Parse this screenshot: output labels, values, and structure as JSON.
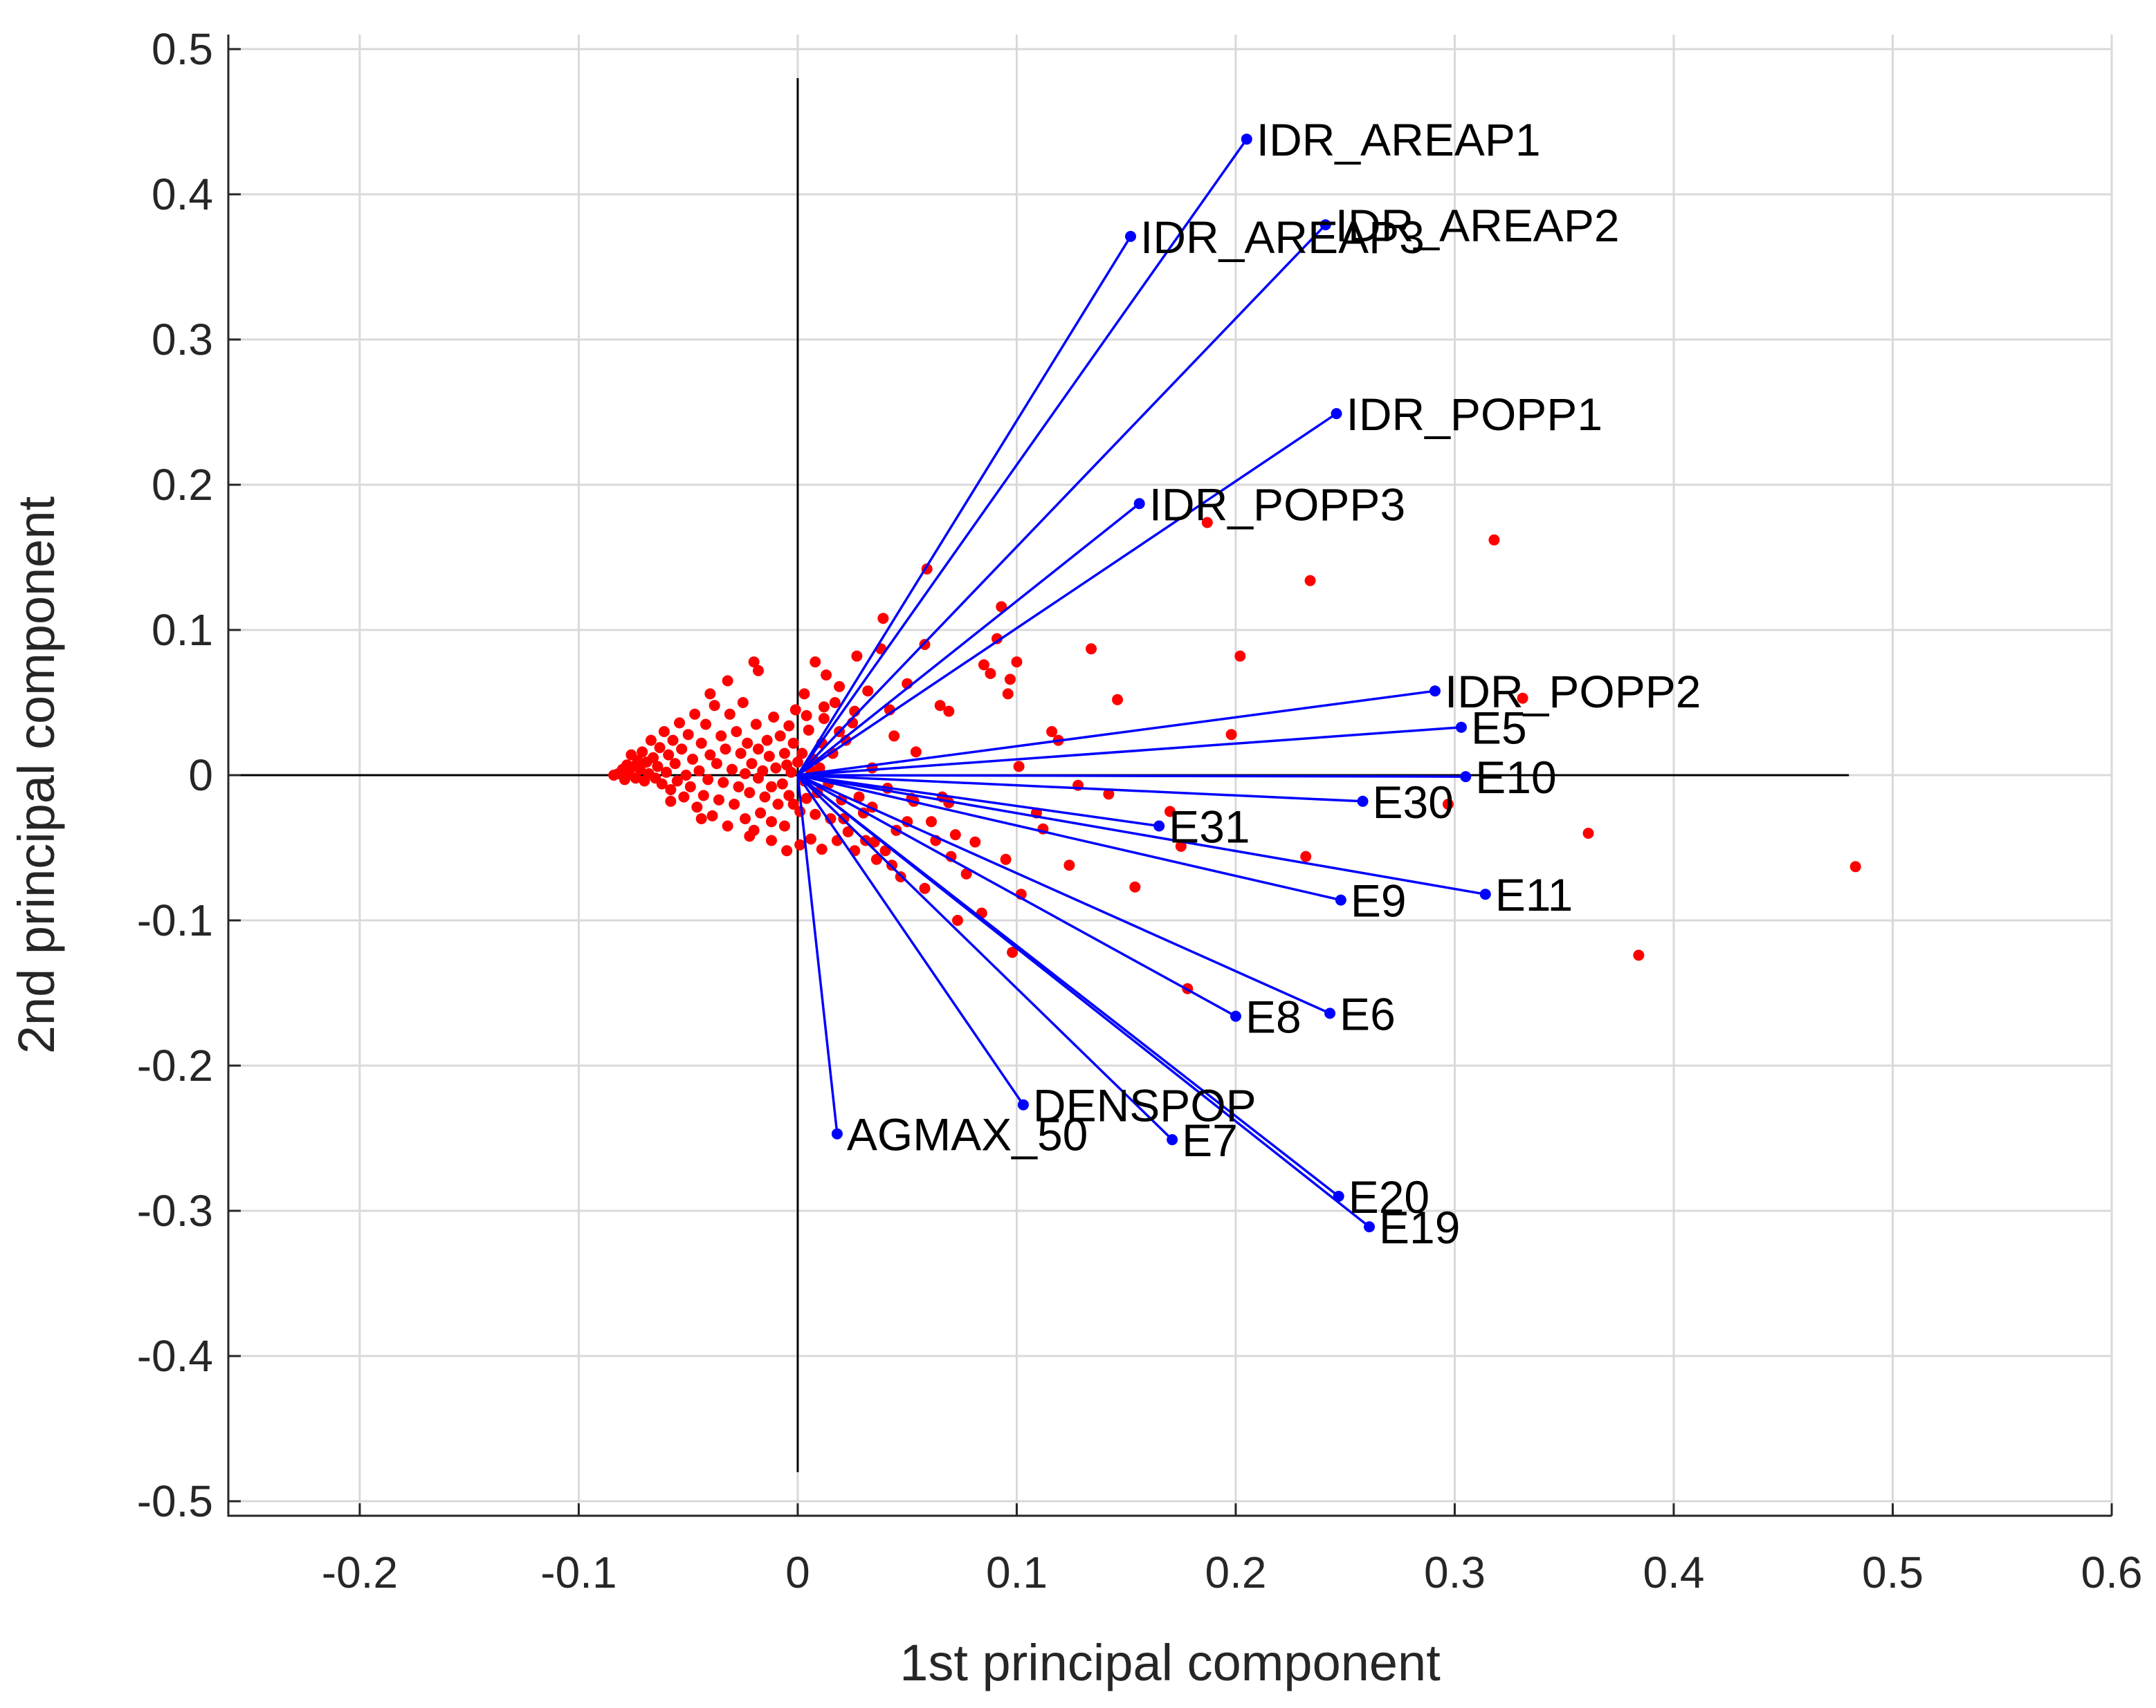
{
  "chart_data": {
    "type": "biplot",
    "xlabel": "1st principal component",
    "ylabel": "2nd principal component",
    "xlim": [
      -0.26,
      0.6
    ],
    "ylim": [
      -0.51,
      0.51
    ],
    "xticks": [
      -0.2,
      -0.1,
      0,
      0.1,
      0.2,
      0.3,
      0.4,
      0.5,
      0.6
    ],
    "xtick_labels": [
      "-0.2",
      "-0.1",
      "0",
      "0.1",
      "0.2",
      "0.3",
      "0.4",
      "0.5",
      "0.6"
    ],
    "yticks": [
      -0.5,
      -0.4,
      -0.3,
      -0.2,
      -0.1,
      0,
      0.1,
      0.2,
      0.3,
      0.4,
      0.5
    ],
    "ytick_labels": [
      "-0.5",
      "-0.4",
      "-0.3",
      "-0.2",
      "-0.1",
      "0",
      "0.1",
      "0.2",
      "0.3",
      "0.4",
      "0.5"
    ],
    "grid": true,
    "reference_lines": {
      "x_range": [
        -0.26,
        0.48
      ],
      "y_range": [
        -0.48,
        0.48
      ]
    },
    "colors": {
      "vectors": "#0000ff",
      "scores": "#ff0000",
      "axes": "#262626",
      "grid": "#d9d9d9"
    },
    "vectors": [
      {
        "name": "IDR_AREAP1",
        "x": 0.205,
        "y": 0.438
      },
      {
        "name": "IDR_AREAP3",
        "x": 0.152,
        "y": 0.371
      },
      {
        "name": "IDR_AREAP2",
        "x": 0.241,
        "y": 0.379
      },
      {
        "name": "IDR_POPP1",
        "x": 0.246,
        "y": 0.249
      },
      {
        "name": "IDR_POPP3",
        "x": 0.156,
        "y": 0.187
      },
      {
        "name": "IDR_POPP2",
        "x": 0.291,
        "y": 0.058
      },
      {
        "name": "E5",
        "x": 0.303,
        "y": 0.033
      },
      {
        "name": "E10",
        "x": 0.305,
        "y": -0.001
      },
      {
        "name": "E30",
        "x": 0.258,
        "y": -0.018
      },
      {
        "name": "E31",
        "x": 0.165,
        "y": -0.035
      },
      {
        "name": "E11",
        "x": 0.314,
        "y": -0.082
      },
      {
        "name": "E9",
        "x": 0.248,
        "y": -0.086
      },
      {
        "name": "E6",
        "x": 0.243,
        "y": -0.164
      },
      {
        "name": "E8",
        "x": 0.2,
        "y": -0.166
      },
      {
        "name": "DENSPOP",
        "x": 0.103,
        "y": -0.227
      },
      {
        "name": "E7",
        "x": 0.171,
        "y": -0.251
      },
      {
        "name": "AGMAX_50",
        "x": 0.018,
        "y": -0.247
      },
      {
        "name": "E20",
        "x": 0.247,
        "y": -0.29
      },
      {
        "name": "E19",
        "x": 0.261,
        "y": -0.311
      }
    ],
    "scores": [
      [
        0.483,
        -0.063
      ],
      [
        0.384,
        -0.124
      ],
      [
        0.361,
        -0.04
      ],
      [
        0.331,
        0.053
      ],
      [
        0.318,
        0.162
      ],
      [
        0.297,
        -0.02
      ],
      [
        0.234,
        0.134
      ],
      [
        0.232,
        -0.056
      ],
      [
        0.202,
        0.082
      ],
      [
        0.198,
        0.028
      ],
      [
        0.187,
        0.174
      ],
      [
        0.178,
        -0.147
      ],
      [
        0.175,
        -0.049
      ],
      [
        0.17,
        -0.025
      ],
      [
        0.154,
        -0.077
      ],
      [
        0.142,
        -0.013
      ],
      [
        0.134,
        0.087
      ],
      [
        0.124,
        -0.062
      ],
      [
        0.119,
        0.024
      ],
      [
        0.112,
        -0.037
      ],
      [
        0.102,
        -0.082
      ],
      [
        0.1,
        0.078
      ],
      [
        0.098,
        -0.122
      ],
      [
        0.097,
        0.066
      ],
      [
        0.096,
        0.056
      ],
      [
        0.095,
        -0.058
      ],
      [
        0.093,
        0.116
      ],
      [
        0.091,
        0.094
      ],
      [
        0.088,
        0.07
      ],
      [
        0.085,
        0.076
      ],
      [
        0.084,
        -0.095
      ],
      [
        0.077,
        -0.068
      ],
      [
        0.073,
        -0.1
      ],
      [
        0.072,
        -0.041
      ],
      [
        0.07,
        -0.056
      ],
      [
        0.069,
        -0.019
      ],
      [
        0.069,
        0.044
      ],
      [
        0.066,
        -0.015
      ],
      [
        0.065,
        0.048
      ],
      [
        0.063,
        -0.045
      ],
      [
        0.059,
        0.142
      ],
      [
        0.058,
        0.09
      ],
      [
        0.058,
        -0.078
      ],
      [
        0.054,
        0.016
      ],
      [
        0.052,
        -0.016
      ],
      [
        0.05,
        0.063
      ],
      [
        0.05,
        -0.032
      ],
      [
        0.047,
        -0.07
      ],
      [
        0.045,
        -0.038
      ],
      [
        0.044,
        0.027
      ],
      [
        0.042,
        0.045
      ],
      [
        0.041,
        -0.009
      ],
      [
        0.04,
        -0.052
      ],
      [
        0.039,
        0.108
      ],
      [
        0.038,
        0.087
      ],
      [
        0.036,
        -0.058
      ],
      [
        0.035,
        -0.046
      ],
      [
        0.034,
        0.005
      ],
      [
        0.032,
        0.058
      ],
      [
        0.031,
        -0.045
      ],
      [
        0.03,
        -0.026
      ],
      [
        0.028,
        -0.015
      ],
      [
        0.027,
        0.082
      ],
      [
        0.026,
        -0.052
      ],
      [
        0.025,
        0.036
      ],
      [
        0.023,
        -0.039
      ],
      [
        0.022,
        0.024
      ],
      [
        0.021,
        -0.03
      ],
      [
        0.02,
        -0.017
      ],
      [
        0.019,
        0.03
      ],
      [
        0.018,
        -0.045
      ],
      [
        0.017,
        0.05
      ],
      [
        0.016,
        0.015
      ],
      [
        0.015,
        -0.03
      ],
      [
        0.014,
        -0.006
      ],
      [
        0.013,
        0.069
      ],
      [
        0.012,
        0.039
      ],
      [
        0.011,
        -0.051
      ],
      [
        0.011,
        0.022
      ],
      [
        0.01,
        0.005
      ],
      [
        0.009,
        -0.012
      ],
      [
        0.008,
        0.078
      ],
      [
        0.008,
        -0.027
      ],
      [
        0.007,
        0.011
      ],
      [
        0.006,
        -0.044
      ],
      [
        0.006,
        0.003
      ],
      [
        0.005,
        0.031
      ],
      [
        0.004,
        -0.016
      ],
      [
        0.003,
        0.056
      ],
      [
        0.003,
        -0.004
      ],
      [
        0.002,
        0.015
      ],
      [
        0.001,
        -0.025
      ],
      [
        0.0,
        0.009
      ],
      [
        -0.001,
        0.045
      ],
      [
        -0.002,
        -0.02
      ],
      [
        -0.002,
        0.022
      ],
      [
        -0.003,
        0.002
      ],
      [
        -0.004,
        0.034
      ],
      [
        -0.004,
        -0.014
      ],
      [
        -0.005,
        0.007
      ],
      [
        -0.006,
        -0.035
      ],
      [
        -0.006,
        0.015
      ],
      [
        -0.007,
        -0.006
      ],
      [
        -0.008,
        0.027
      ],
      [
        -0.009,
        -0.02
      ],
      [
        -0.01,
        0.005
      ],
      [
        -0.011,
        0.04
      ],
      [
        -0.012,
        -0.008
      ],
      [
        -0.012,
        -0.032
      ],
      [
        -0.013,
        0.013
      ],
      [
        -0.014,
        0.024
      ],
      [
        -0.015,
        -0.015
      ],
      [
        -0.016,
        0.003
      ],
      [
        -0.017,
        -0.026
      ],
      [
        -0.018,
        0.018
      ],
      [
        -0.018,
        -0.002
      ],
      [
        -0.019,
        0.035
      ],
      [
        -0.02,
        -0.038
      ],
      [
        -0.021,
        0.008
      ],
      [
        -0.022,
        -0.012
      ],
      [
        -0.023,
        0.022
      ],
      [
        -0.024,
        0.001
      ],
      [
        -0.024,
        -0.03
      ],
      [
        -0.025,
        0.05
      ],
      [
        -0.026,
        0.015
      ],
      [
        -0.027,
        -0.008
      ],
      [
        -0.028,
        0.03
      ],
      [
        -0.029,
        -0.02
      ],
      [
        -0.03,
        0.004
      ],
      [
        -0.031,
        0.042
      ],
      [
        -0.032,
        -0.035
      ],
      [
        -0.033,
        0.018
      ],
      [
        -0.034,
        -0.005
      ],
      [
        -0.035,
        0.027
      ],
      [
        -0.036,
        -0.017
      ],
      [
        -0.037,
        0.008
      ],
      [
        -0.038,
        0.048
      ],
      [
        -0.039,
        -0.028
      ],
      [
        -0.04,
        0.014
      ],
      [
        -0.041,
        -0.003
      ],
      [
        -0.042,
        0.035
      ],
      [
        -0.043,
        -0.014
      ],
      [
        -0.044,
        0.022
      ],
      [
        -0.045,
        0.003
      ],
      [
        -0.046,
        -0.022
      ],
      [
        -0.047,
        0.042
      ],
      [
        -0.048,
        0.011
      ],
      [
        -0.049,
        -0.008
      ],
      [
        -0.05,
        0.028
      ],
      [
        -0.051,
        0.0
      ],
      [
        -0.052,
        -0.015
      ],
      [
        -0.053,
        0.018
      ],
      [
        -0.054,
        0.036
      ],
      [
        -0.055,
        -0.004
      ],
      [
        -0.056,
        0.008
      ],
      [
        -0.057,
        0.024
      ],
      [
        -0.058,
        -0.01
      ],
      [
        -0.059,
        0.014
      ],
      [
        -0.06,
        0.002
      ],
      [
        -0.061,
        0.03
      ],
      [
        -0.062,
        -0.006
      ],
      [
        -0.063,
        0.019
      ],
      [
        -0.064,
        0.006
      ],
      [
        -0.065,
        -0.002
      ],
      [
        -0.066,
        0.012
      ],
      [
        -0.067,
        0.024
      ],
      [
        -0.068,
        0.001
      ],
      [
        -0.069,
        0.009
      ],
      [
        -0.07,
        -0.004
      ],
      [
        -0.071,
        0.016
      ],
      [
        -0.072,
        0.004
      ],
      [
        -0.073,
        0.01
      ],
      [
        -0.074,
        -0.002
      ],
      [
        -0.075,
        0.006
      ],
      [
        -0.076,
        0.014
      ],
      [
        -0.077,
        0.001
      ],
      [
        -0.078,
        0.007
      ],
      [
        -0.079,
        -0.003
      ],
      [
        -0.08,
        0.004
      ],
      [
        -0.082,
        0.001
      ],
      [
        -0.084,
        0.0
      ],
      [
        -0.02,
        0.078
      ],
      [
        -0.018,
        0.072
      ],
      [
        -0.032,
        0.065
      ],
      [
        -0.04,
        0.056
      ],
      [
        -0.012,
        -0.045
      ],
      [
        -0.005,
        -0.052
      ],
      [
        0.001,
        -0.048
      ],
      [
        -0.022,
        -0.042
      ],
      [
        -0.044,
        -0.03
      ],
      [
        -0.058,
        -0.018
      ],
      [
        0.004,
        0.041
      ],
      [
        0.012,
        0.047
      ],
      [
        0.019,
        0.061
      ],
      [
        0.026,
        0.044
      ],
      [
        0.034,
        -0.022
      ],
      [
        0.043,
        -0.062
      ],
      [
        0.053,
        -0.018
      ],
      [
        0.061,
        -0.032
      ],
      [
        0.081,
        -0.046
      ],
      [
        0.101,
        0.006
      ],
      [
        0.109,
        -0.026
      ],
      [
        0.116,
        0.03
      ],
      [
        0.128,
        -0.007
      ],
      [
        0.146,
        0.052
      ]
    ]
  }
}
